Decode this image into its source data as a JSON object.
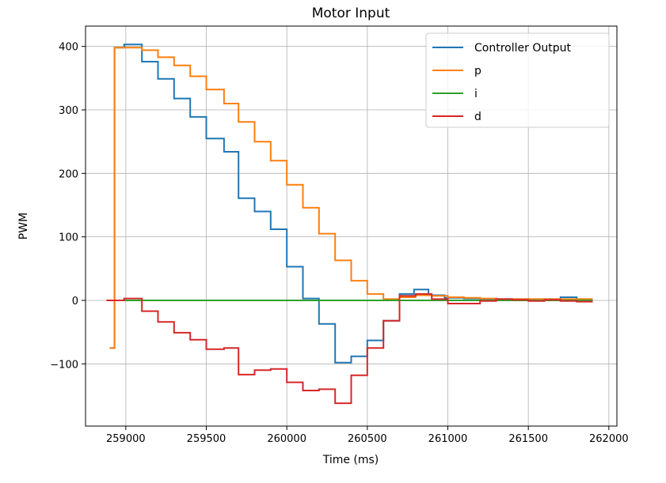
{
  "chart_data": {
    "type": "line",
    "title": "Motor Input",
    "xlabel": "Time (ms)",
    "ylabel": "PWM",
    "xlim": [
      258750,
      262050
    ],
    "ylim": [
      -198,
      432
    ],
    "xticks": [
      259000,
      259500,
      260000,
      260500,
      261000,
      261500,
      262000
    ],
    "yticks": [
      -100,
      0,
      100,
      200,
      300,
      400
    ],
    "grid": true,
    "legend_position": "top-right",
    "series": [
      {
        "name": "Controller Output",
        "color": "#1f77b4",
        "x": [
          258900,
          258900,
          258930,
          258930,
          258990,
          258990,
          259100,
          259100,
          259200,
          259200,
          259300,
          259300,
          259400,
          259400,
          259500,
          259500,
          259610,
          259610,
          259700,
          259700,
          259800,
          259800,
          259900,
          259900,
          260000,
          260000,
          260100,
          260100,
          260200,
          260200,
          260300,
          260300,
          260400,
          260400,
          260500,
          260500,
          260600,
          260600,
          260700,
          260700,
          260790,
          260790,
          260880,
          260880,
          260980,
          260980,
          261100,
          261100,
          261200,
          261200,
          261300,
          261300,
          261400,
          261400,
          261500,
          261500,
          261600,
          261600,
          261700,
          261700,
          261800,
          261800,
          261900
        ],
        "y": [
          -75,
          -75,
          -75,
          398,
          398,
          403,
          403,
          376,
          376,
          349,
          349,
          318,
          318,
          289,
          289,
          255,
          255,
          234,
          234,
          161,
          161,
          140,
          140,
          112,
          112,
          53,
          53,
          3,
          3,
          -37,
          -37,
          -98,
          -98,
          -88,
          -88,
          -63,
          -63,
          -32,
          -32,
          10,
          10,
          17,
          17,
          8,
          8,
          4,
          4,
          3,
          3,
          2,
          2,
          2,
          2,
          2,
          2,
          2,
          2,
          2,
          2,
          5,
          5,
          2,
          2
        ]
      },
      {
        "name": "p",
        "color": "#ff7f0e",
        "x": [
          258900,
          258900,
          258930,
          258930,
          259100,
          259100,
          259200,
          259200,
          259300,
          259300,
          259400,
          259400,
          259500,
          259500,
          259610,
          259610,
          259700,
          259700,
          259800,
          259800,
          259900,
          259900,
          260000,
          260000,
          260100,
          260100,
          260200,
          260200,
          260300,
          260300,
          260400,
          260400,
          260500,
          260500,
          260600,
          260600,
          260700,
          260700,
          260800,
          260800,
          260900,
          260900,
          261000,
          261000,
          261100,
          261100,
          261200,
          261200,
          261300,
          261300,
          261900
        ],
        "y": [
          -75,
          -75,
          -75,
          398,
          398,
          394,
          394,
          383,
          383,
          370,
          370,
          353,
          353,
          332,
          332,
          310,
          310,
          281,
          281,
          250,
          250,
          220,
          220,
          182,
          182,
          146,
          146,
          105,
          105,
          63,
          63,
          31,
          31,
          10,
          10,
          2,
          2,
          5,
          5,
          8,
          8,
          7,
          7,
          5,
          5,
          4,
          4,
          3,
          3,
          2,
          2
        ]
      },
      {
        "name": "i",
        "color": "#2ca02c",
        "x": [
          258990,
          261900
        ],
        "y": [
          0,
          0
        ]
      },
      {
        "name": "d",
        "color": "#d62728",
        "x": [
          258880,
          258990,
          258990,
          259100,
          259100,
          259200,
          259200,
          259300,
          259300,
          259400,
          259400,
          259500,
          259500,
          259610,
          259610,
          259700,
          259700,
          259800,
          259800,
          259900,
          259900,
          260000,
          260000,
          260100,
          260100,
          260200,
          260200,
          260300,
          260300,
          260400,
          260400,
          260500,
          260500,
          260600,
          260600,
          260700,
          260700,
          260800,
          260800,
          260900,
          260900,
          261000,
          261000,
          261200,
          261200,
          261300,
          261300,
          261400,
          261400,
          261500,
          261500,
          261600,
          261600,
          261700,
          261700,
          261800,
          261800,
          261900
        ],
        "y": [
          0,
          0,
          3,
          3,
          -17,
          -17,
          -34,
          -34,
          -51,
          -51,
          -62,
          -62,
          -77,
          -77,
          -75,
          -75,
          -117,
          -117,
          -110,
          -110,
          -108,
          -108,
          -129,
          -129,
          -142,
          -142,
          -140,
          -140,
          -162,
          -162,
          -118,
          -118,
          -75,
          -75,
          -32,
          -32,
          7,
          7,
          10,
          10,
          2,
          2,
          -5,
          -5,
          -1,
          -1,
          2,
          2,
          1,
          1,
          -1,
          -1,
          1,
          1,
          -1,
          -1,
          -2,
          -2
        ]
      }
    ]
  }
}
